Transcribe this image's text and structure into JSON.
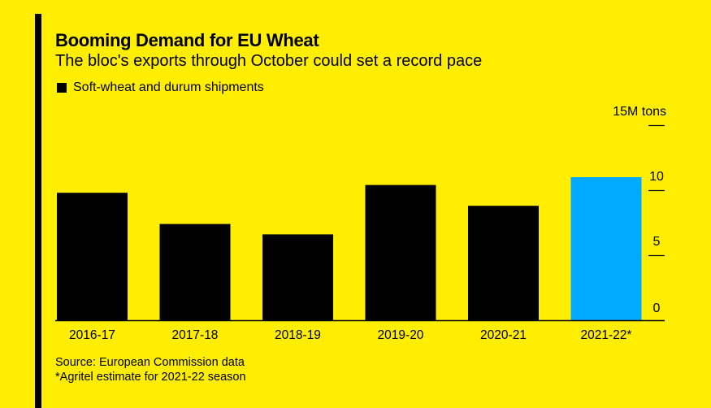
{
  "title": "Booming Demand for EU Wheat",
  "subtitle": "The bloc's exports through October could set a record pace",
  "legend": {
    "label": "Soft-wheat and durum shipments",
    "color": "#000000"
  },
  "source": "Source: European Commission data",
  "footnote": "*Agritel estimate for 2021-22 season",
  "colors": {
    "background": "#ffee00",
    "bar": "#000000",
    "highlight": "#00aaff"
  },
  "chart_data": {
    "type": "bar",
    "categories": [
      "2016-17",
      "2017-18",
      "2018-19",
      "2019-20",
      "2020-21",
      "2021-22*"
    ],
    "values": [
      9.8,
      7.4,
      6.6,
      10.4,
      8.8,
      11.0
    ],
    "highlight_index": 5,
    "ylim": [
      0,
      15
    ],
    "yticks": [
      0,
      5,
      10,
      15
    ],
    "ytick_labels": [
      "0",
      "5",
      "10",
      "15M tons"
    ],
    "ylabel": "",
    "xlabel": "",
    "legend_position": "top-left",
    "grid": false
  }
}
